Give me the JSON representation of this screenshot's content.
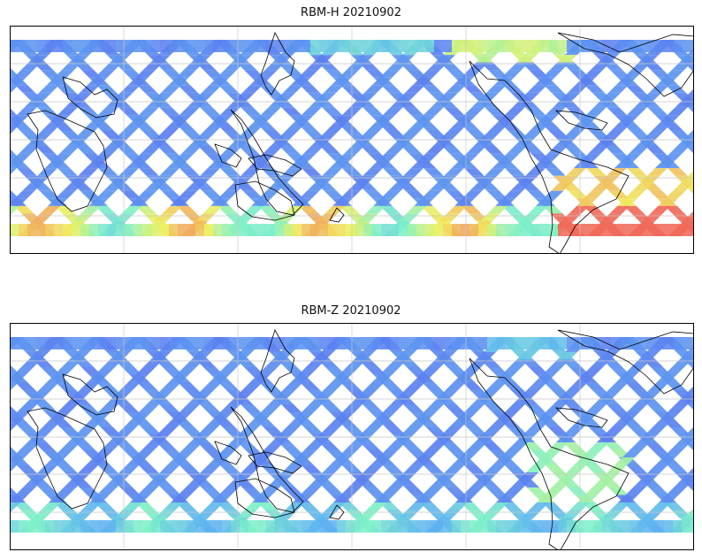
{
  "maps": [
    {
      "title": "RBM-H 20210902",
      "colormap": "jet",
      "hotspots": [
        "south-atlantic-pacific-southern-ocean",
        "north-pacific-high-latitude"
      ]
    },
    {
      "title": "RBM-Z 20210902",
      "colormap": "jet",
      "hotspots": [
        "south-america-east-coast"
      ]
    }
  ],
  "colors": {
    "low": "#5a6ef0",
    "mid_low": "#5fb4f0",
    "mid": "#7ef0c8",
    "mid_high": "#f0f060",
    "high": "#f06a5a",
    "coastline": "#000000",
    "grid": "#c8c8c8"
  }
}
